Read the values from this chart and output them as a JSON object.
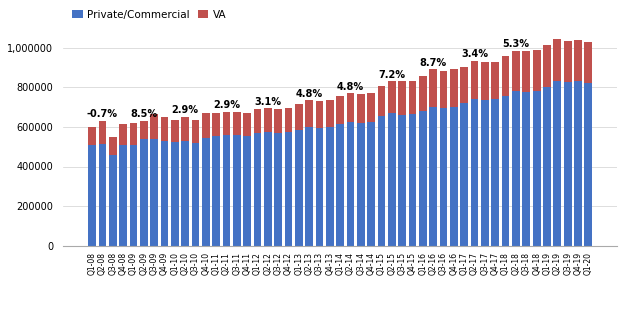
{
  "quarters": [
    "Q1-08",
    "Q2-08",
    "Q3-08",
    "Q4-08",
    "Q1-09",
    "Q2-09",
    "Q3-09",
    "Q4-09",
    "Q1-10",
    "Q2-10",
    "Q3-10",
    "Q4-10",
    "Q1-11",
    "Q2-11",
    "Q3-11",
    "Q4-11",
    "Q1-12",
    "Q2-12",
    "Q3-12",
    "Q4-12",
    "Q1-13",
    "Q2-13",
    "Q3-13",
    "Q4-13",
    "Q1-14",
    "Q2-14",
    "Q3-14",
    "Q4-14",
    "Q1-15",
    "Q2-15",
    "Q3-15",
    "Q4-15",
    "Q1-16",
    "Q2-16",
    "Q3-16",
    "Q4-16",
    "Q1-17",
    "Q2-17",
    "Q3-17",
    "Q4-17",
    "Q1-18",
    "Q2-18",
    "Q3-18",
    "Q4-18",
    "Q1-19",
    "Q2-19",
    "Q3-19",
    "Q4-19",
    "Q1-20"
  ],
  "private": [
    510000,
    515000,
    460000,
    510000,
    510000,
    540000,
    540000,
    530000,
    525000,
    530000,
    520000,
    545000,
    555000,
    560000,
    560000,
    555000,
    570000,
    575000,
    570000,
    575000,
    585000,
    600000,
    595000,
    600000,
    615000,
    625000,
    620000,
    625000,
    655000,
    670000,
    660000,
    665000,
    680000,
    700000,
    695000,
    700000,
    720000,
    740000,
    735000,
    740000,
    755000,
    780000,
    775000,
    780000,
    800000,
    830000,
    825000,
    830000,
    820000
  ],
  "va": [
    90000,
    115000,
    90000,
    105000,
    110000,
    90000,
    125000,
    120000,
    110000,
    120000,
    115000,
    125000,
    115000,
    115000,
    115000,
    115000,
    120000,
    120000,
    120000,
    120000,
    130000,
    135000,
    135000,
    135000,
    140000,
    145000,
    145000,
    145000,
    150000,
    160000,
    170000,
    165000,
    175000,
    190000,
    185000,
    190000,
    185000,
    195000,
    195000,
    190000,
    205000,
    205000,
    210000,
    210000,
    215000,
    215000,
    210000,
    210000,
    210000
  ],
  "annotations": [
    {
      "idx": 1,
      "text": "-0.7%"
    },
    {
      "idx": 5,
      "text": "8.5%"
    },
    {
      "idx": 9,
      "text": "2.9%"
    },
    {
      "idx": 13,
      "text": "2.9%"
    },
    {
      "idx": 17,
      "text": "3.1%"
    },
    {
      "idx": 21,
      "text": "4.8%"
    },
    {
      "idx": 25,
      "text": "4.8%"
    },
    {
      "idx": 29,
      "text": "7.2%"
    },
    {
      "idx": 33,
      "text": "8.7%"
    },
    {
      "idx": 37,
      "text": "3.4%"
    },
    {
      "idx": 41,
      "text": "5.3%"
    }
  ],
  "bar_color_private": "#4472C4",
  "bar_color_va": "#C0504D",
  "legend_labels": [
    "Private/Commercial",
    "VA"
  ],
  "ylim": [
    0,
    1050000
  ],
  "yticks": [
    0,
    200000,
    400000,
    600000,
    800000,
    1000000
  ],
  "annotation_fontsize": 7,
  "annotation_fontweight": "bold",
  "bg_color": "#ffffff"
}
